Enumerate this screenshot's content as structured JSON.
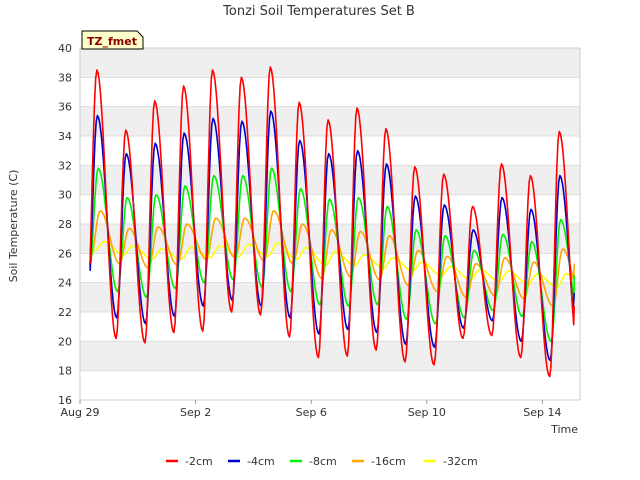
{
  "chart_data": {
    "type": "line",
    "title": "Tonzi Soil Temperatures Set B",
    "xlabel": "Time",
    "ylabel": "Soil Temperature (C)",
    "badge": "TZ_fmet",
    "ylim": [
      16,
      40
    ],
    "xlim": [
      0,
      17.3
    ],
    "y_ticks": [
      16,
      18,
      20,
      22,
      24,
      26,
      28,
      30,
      32,
      34,
      36,
      38,
      40
    ],
    "x_ticks": [
      {
        "value": 0,
        "label": "Aug 29"
      },
      {
        "value": 4,
        "label": "Sep 2"
      },
      {
        "value": 8,
        "label": "Sep 6"
      },
      {
        "value": 12,
        "label": "Sep 10"
      },
      {
        "value": 16,
        "label": "Sep 14"
      }
    ],
    "grid": true,
    "legend_position": "bottom",
    "series": [
      {
        "name": "-2cm",
        "color": "#ff0000",
        "min_day": [
          22.0,
          20.2,
          19.9,
          20.6,
          20.7,
          22.0,
          21.8,
          20.3,
          18.9,
          19.0,
          19.4,
          18.6,
          18.4,
          20.2,
          20.4,
          18.9,
          17.6,
          18.9
        ],
        "max_day": [
          38.5,
          34.4,
          36.4,
          37.4,
          38.5,
          38.0,
          38.7,
          36.3,
          35.1,
          35.9,
          34.5,
          31.9,
          31.4,
          29.2,
          32.1,
          31.3,
          34.3
        ],
        "final": 22.4
      },
      {
        "name": "-4cm",
        "color": "#0000cc",
        "min_day": [
          23.0,
          21.6,
          21.2,
          21.7,
          22.4,
          22.8,
          22.4,
          21.6,
          20.5,
          20.8,
          20.6,
          19.8,
          19.6,
          20.9,
          21.4,
          20.0,
          18.7,
          19.4
        ],
        "max_day": [
          35.4,
          32.8,
          33.5,
          34.2,
          35.2,
          35.0,
          35.7,
          33.7,
          32.8,
          33.0,
          32.1,
          29.9,
          29.3,
          27.6,
          29.8,
          29.0,
          31.3
        ],
        "final": 23.3
      },
      {
        "name": "-8cm",
        "color": "#00ee00",
        "min_day": [
          24.3,
          23.4,
          23.0,
          23.6,
          24.0,
          24.2,
          23.7,
          23.4,
          22.5,
          22.4,
          22.5,
          21.5,
          21.2,
          21.6,
          22.1,
          21.7,
          20.0,
          21.3
        ],
        "max_day": [
          31.8,
          29.8,
          30.0,
          30.6,
          31.3,
          31.3,
          31.8,
          30.4,
          29.7,
          29.8,
          29.2,
          27.6,
          27.2,
          26.2,
          27.3,
          26.8,
          28.3
        ],
        "final": 24.5
      },
      {
        "name": "-16cm",
        "color": "#ffa500",
        "min_day": [
          25.8,
          25.3,
          25.0,
          25.2,
          25.6,
          25.7,
          25.5,
          25.3,
          24.3,
          24.4,
          24.2,
          23.8,
          23.4,
          23.0,
          23.1,
          22.9,
          22.4,
          22.8
        ],
        "max_day": [
          28.9,
          27.7,
          27.8,
          28.0,
          28.4,
          28.4,
          28.9,
          28.0,
          27.6,
          27.5,
          27.2,
          26.2,
          25.8,
          25.3,
          25.7,
          25.4,
          26.3
        ],
        "final": 25.3
      },
      {
        "name": "-32cm",
        "color": "#ffff00",
        "min_day": [
          26.2,
          25.9,
          25.6,
          25.6,
          25.7,
          25.8,
          25.8,
          25.6,
          25.2,
          25.2,
          25.0,
          24.8,
          24.5,
          24.2,
          24.1,
          23.9,
          23.7,
          23.8
        ],
        "max_day": [
          26.8,
          26.5,
          26.3,
          26.4,
          26.5,
          26.6,
          26.7,
          26.4,
          26.1,
          25.9,
          25.7,
          25.4,
          25.1,
          24.9,
          24.8,
          24.6,
          24.6
        ],
        "final": 24.6
      }
    ]
  }
}
